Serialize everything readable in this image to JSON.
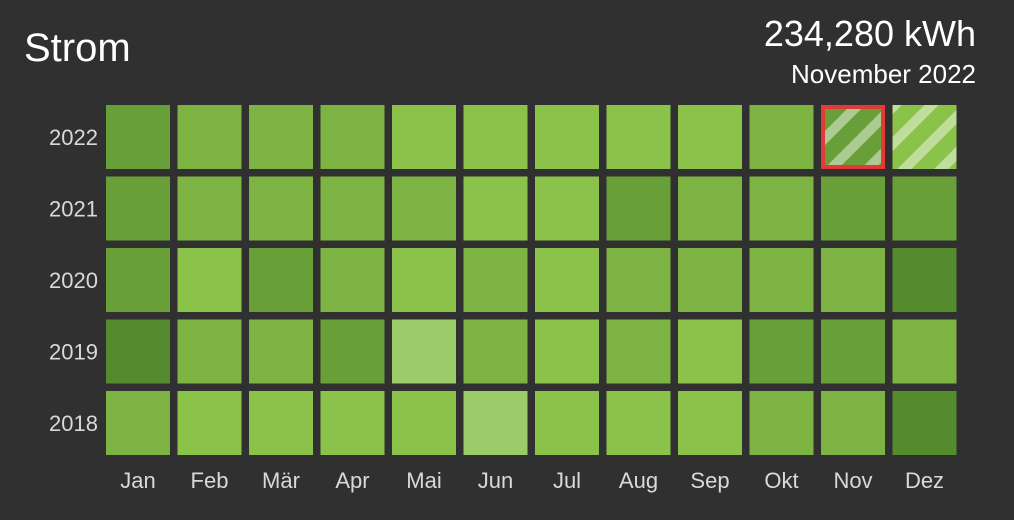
{
  "header": {
    "title": "Strom",
    "total": "234,280 kWh",
    "period": "November 2022"
  },
  "colors": {
    "background": "#303030",
    "selection": "#e53935",
    "hatch": "#ffffff",
    "scale": [
      "#9ccc6a",
      "#8bc34a",
      "#7cb342",
      "#689f38",
      "#558b2f"
    ]
  },
  "chart_data": {
    "type": "heatmap",
    "title": "",
    "xlabel": "",
    "ylabel": "",
    "columns": [
      "Jan",
      "Feb",
      "Mär",
      "Apr",
      "Mai",
      "Jun",
      "Jul",
      "Aug",
      "Sep",
      "Okt",
      "Nov",
      "Dez"
    ],
    "rows": [
      "2022",
      "2021",
      "2020",
      "2019",
      "2018"
    ],
    "levels": [
      [
        3,
        2,
        2,
        2,
        1,
        1,
        1,
        1,
        1,
        2,
        3,
        1
      ],
      [
        3,
        2,
        2,
        2,
        2,
        1,
        1,
        3,
        2,
        2,
        3,
        3
      ],
      [
        3,
        1,
        3,
        2,
        1,
        2,
        1,
        2,
        2,
        2,
        2,
        4
      ],
      [
        4,
        2,
        2,
        3,
        0,
        2,
        1,
        2,
        1,
        3,
        3,
        2
      ],
      [
        2,
        1,
        1,
        1,
        1,
        0,
        1,
        1,
        1,
        2,
        2,
        4
      ]
    ],
    "selected": {
      "row": "2022",
      "column": "Nov"
    },
    "incomplete": [
      {
        "row": "2022",
        "column": "Nov"
      },
      {
        "row": "2022",
        "column": "Dez"
      }
    ]
  }
}
